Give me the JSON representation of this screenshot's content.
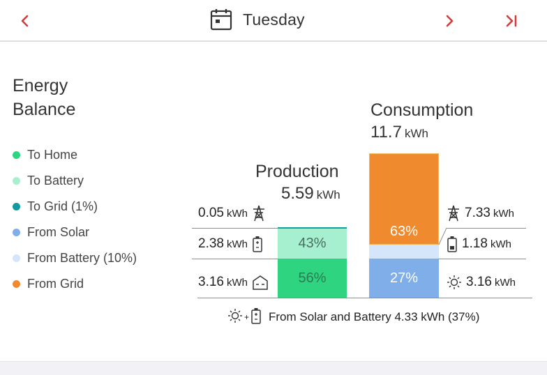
{
  "header": {
    "day": "Tuesday",
    "icons": {
      "prev": "chevron-left-icon",
      "calendar": "calendar-icon",
      "next": "chevron-right-icon",
      "last": "skip-to-end-icon"
    },
    "accent": "#d33c3c"
  },
  "legend": {
    "title_line1": "Energy",
    "title_line2": "Balance",
    "items": [
      {
        "label": "To Home",
        "color": "#2ed47f"
      },
      {
        "label": "To Battery",
        "color": "#a6f0cf"
      },
      {
        "label": "To Grid (1%)",
        "color": "#139aa0"
      },
      {
        "label": "From Solar",
        "color": "#7faee9"
      },
      {
        "label": "From Battery (10%)",
        "color": "#d6e6fa"
      },
      {
        "label": "From Grid",
        "color": "#f08a2e"
      }
    ]
  },
  "production": {
    "title": "Production",
    "total_value": "5.59",
    "total_unit": "kWh",
    "segments": {
      "to_grid_pct": 1,
      "to_battery_pct": 43,
      "to_home_pct": 56
    },
    "battery_label": "43%",
    "home_label": "56%",
    "rows": [
      {
        "value": "0.05",
        "unit": "kWh",
        "icon": "transmission-tower-icon"
      },
      {
        "value": "2.38",
        "unit": "kWh",
        "icon": "battery-icon"
      },
      {
        "value": "3.16",
        "unit": "kWh",
        "icon": "home-battery-icon"
      }
    ]
  },
  "consumption": {
    "title": "Consumption",
    "total_value": "11.7",
    "total_unit": "kWh",
    "segments": {
      "from_grid_pct": 63,
      "from_battery_pct": 10,
      "from_solar_pct": 27
    },
    "grid_label": "63%",
    "solar_label": "27%",
    "rows": [
      {
        "value": "7.33",
        "unit": "kWh",
        "icon": "transmission-tower-icon"
      },
      {
        "value": "1.18",
        "unit": "kWh",
        "icon": "battery-icon"
      },
      {
        "value": "3.16",
        "unit": "kWh",
        "icon": "sun-icon"
      }
    ]
  },
  "footer": {
    "plus": "+",
    "text": "From Solar and Battery 4.33 kWh (37%)",
    "icons": [
      "sun-icon",
      "battery-icon"
    ]
  }
}
